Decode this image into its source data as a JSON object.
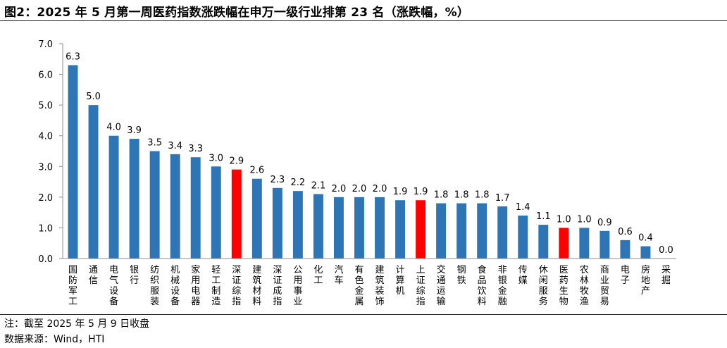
{
  "title": "图2：2025 年 5 月第一周医药指数涨跌幅在申万一级行业排第 23 名（涨跌幅，%）",
  "notes": {
    "note": "注：截至 2025 年 5 月 9 日收盘",
    "source": "数据来源：Wind，HTI"
  },
  "colors": {
    "default": "#2e75b6",
    "highlight": "#ff0000"
  },
  "chart_data": {
    "type": "bar",
    "title": "",
    "xlabel": "",
    "ylabel": "",
    "ylim": [
      0,
      7
    ],
    "yticks": [
      "0.0",
      "1.0",
      "2.0",
      "3.0",
      "4.0",
      "5.0",
      "6.0",
      "7.0"
    ],
    "grid": false,
    "categories": [
      "国防军工",
      "通信",
      "电气设备",
      "银行",
      "纺织服装",
      "机械设备",
      "家用电器",
      "轻工制造",
      "深证综指",
      "建筑材料",
      "深证成指",
      "公用事业",
      "化工",
      "汽车",
      "有色金属",
      "建筑装饰",
      "计算机",
      "上证综指",
      "交通运输",
      "钢铁",
      "食品饮料",
      "非银金融",
      "传媒",
      "休闲服务",
      "医药生物",
      "农林牧渔",
      "商业贸易",
      "电子",
      "房地产",
      "采掘"
    ],
    "values": [
      6.3,
      5.0,
      4.0,
      3.9,
      3.5,
      3.4,
      3.3,
      3.0,
      2.9,
      2.6,
      2.3,
      2.2,
      2.1,
      2.0,
      2.0,
      2.0,
      1.9,
      1.9,
      1.8,
      1.8,
      1.8,
      1.7,
      1.4,
      1.1,
      1.0,
      1.0,
      0.9,
      0.6,
      0.4,
      0.0
    ],
    "labels": [
      "6.3",
      "5.0",
      "4.0",
      "3.9",
      "3.5",
      "3.4",
      "3.3",
      "3.0",
      "2.9",
      "2.6",
      "2.3",
      "2.2",
      "2.1",
      "2.0",
      "2.0",
      "2.0",
      "1.9",
      "1.9",
      "1.8",
      "1.8",
      "1.8",
      "1.7",
      "1.4",
      "1.1",
      "1.0",
      "1.0",
      "0.9",
      "0.6",
      "0.4",
      "0.0"
    ],
    "highlighted": [
      "深证综指",
      "上证综指",
      "医药生物"
    ]
  }
}
